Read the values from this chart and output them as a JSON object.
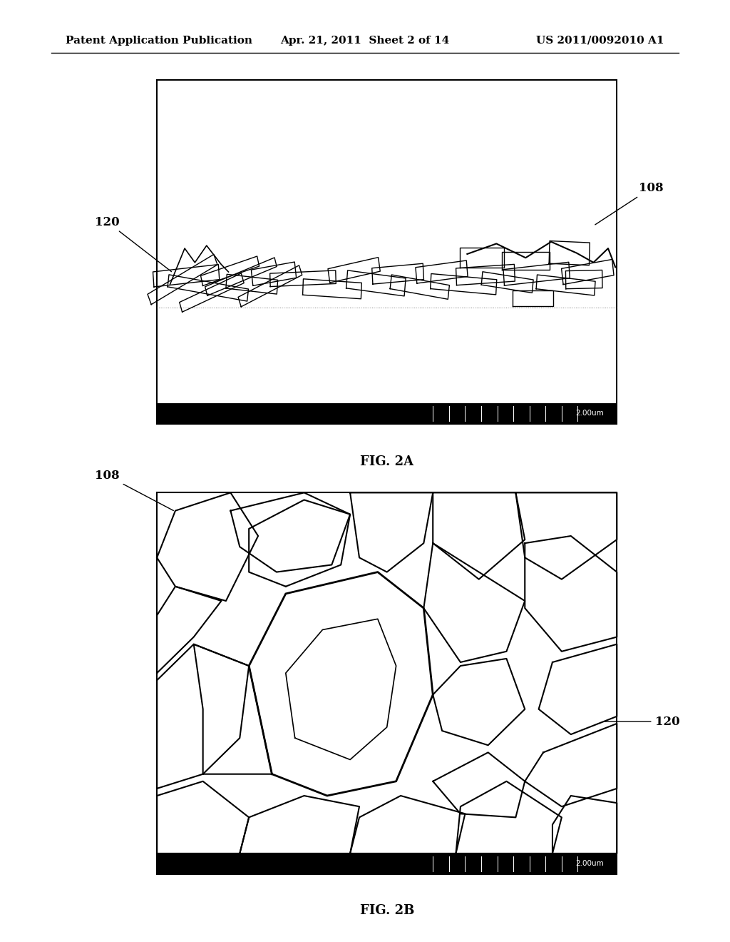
{
  "background_color": "#ffffff",
  "header_left": "Patent Application Publication",
  "header_center": "Apr. 21, 2011  Sheet 2 of 14",
  "header_right": "US 2011/0092010 A1",
  "header_fontsize": 11,
  "fig2a_label": "FIG. 2A",
  "fig2b_label": "FIG. 2B",
  "scalebar_text": "2.00um"
}
